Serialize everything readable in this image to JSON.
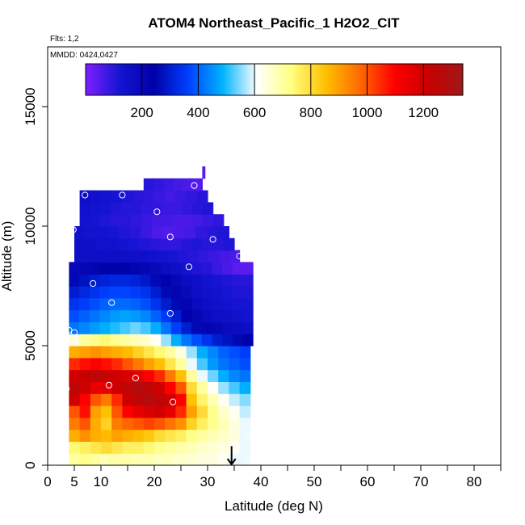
{
  "chart_data": {
    "type": "heatmap",
    "title": "ATOM4 Northeast_Pacific_1 H2O2_CIT",
    "flights_text": "Flts: 1,2",
    "dates_text": "MMDD: 0424,0427",
    "xlabel": "Latitude (deg N)",
    "ylabel": "Altitude (m)",
    "xlim": [
      0,
      85
    ],
    "ylim": [
      0,
      17500
    ],
    "x_ticks": [
      0,
      5,
      10,
      20,
      30,
      40,
      50,
      60,
      70,
      80
    ],
    "x_tick_labels": [
      "0",
      "5",
      "10",
      "20",
      "30",
      "40",
      "50",
      "60",
      "70",
      "80"
    ],
    "x_minor_ticks": [
      15,
      25,
      35,
      45,
      55,
      65,
      75,
      85
    ],
    "y_ticks": [
      0,
      5000,
      10000,
      15000
    ],
    "y_tick_labels": [
      "0",
      "5000",
      "10000",
      "15000"
    ],
    "colorbar": {
      "min": 0,
      "max": 1340,
      "ticks": [
        200,
        400,
        600,
        800,
        1000,
        1200
      ],
      "tick_labels": [
        "200",
        "400",
        "600",
        "800",
        "1000",
        "1200"
      ],
      "colors": [
        "#7f1fff",
        "#1414d2",
        "#0000a8",
        "#0040ff",
        "#00b4ff",
        "#ffffff",
        "#ffff80",
        "#ffc000",
        "#ff6a00",
        "#ff0000",
        "#c80000",
        "#a01818"
      ]
    },
    "layers": [
      {
        "alt": [
          0,
          500
        ],
        "lat": [
          4,
          38
        ],
        "values": [
          700,
          720,
          700,
          690,
          690,
          690,
          680,
          680,
          670,
          670,
          660,
          650,
          640,
          640,
          620,
          600,
          600
        ]
      },
      {
        "alt": [
          500,
          1000
        ],
        "lat": [
          4,
          38
        ],
        "values": [
          740,
          760,
          780,
          800,
          780,
          760,
          760,
          740,
          720,
          700,
          690,
          680,
          660,
          650,
          640,
          620,
          600
        ]
      },
      {
        "alt": [
          1000,
          1500
        ],
        "lat": [
          4,
          38
        ],
        "values": [
          880,
          920,
          880,
          860,
          900,
          880,
          860,
          840,
          800,
          780,
          760,
          720,
          700,
          680,
          660,
          640,
          600
        ]
      },
      {
        "alt": [
          1500,
          2000
        ],
        "lat": [
          4,
          38
        ],
        "values": [
          950,
          1000,
          880,
          820,
          950,
          980,
          1000,
          1020,
          1000,
          960,
          920,
          820,
          760,
          720,
          680,
          640,
          600
        ]
      },
      {
        "alt": [
          2000,
          2500
        ],
        "lat": [
          4,
          38
        ],
        "values": [
          1000,
          1080,
          900,
          850,
          1000,
          1100,
          1150,
          1180,
          1200,
          1150,
          1050,
          900,
          800,
          720,
          660,
          620,
          580
        ]
      },
      {
        "alt": [
          2500,
          3000
        ],
        "lat": [
          4,
          38
        ],
        "values": [
          1200,
          1100,
          1000,
          950,
          1050,
          1200,
          1250,
          1280,
          1250,
          1200,
          1100,
          850,
          750,
          680,
          620,
          580,
          550
        ]
      },
      {
        "alt": [
          3000,
          3500
        ],
        "lat": [
          4,
          38
        ],
        "values": [
          1250,
          1200,
          1150,
          1150,
          1200,
          1250,
          1280,
          1250,
          1200,
          1100,
          1000,
          800,
          700,
          620,
          560,
          520,
          480
        ]
      },
      {
        "alt": [
          3500,
          4000
        ],
        "lat": [
          4,
          38
        ],
        "values": [
          1200,
          1220,
          1250,
          1230,
          1200,
          1180,
          1150,
          1100,
          1050,
          950,
          850,
          700,
          600,
          540,
          480,
          440,
          420
        ]
      },
      {
        "alt": [
          4000,
          4500
        ],
        "lat": [
          4,
          38
        ],
        "values": [
          1050,
          1080,
          1100,
          1080,
          1050,
          1000,
          950,
          900,
          850,
          780,
          700,
          600,
          520,
          460,
          420,
          400,
          380
        ]
      },
      {
        "alt": [
          4500,
          5000
        ],
        "lat": [
          4,
          38
        ],
        "values": [
          880,
          900,
          920,
          900,
          880,
          860,
          820,
          780,
          740,
          700,
          640,
          560,
          480,
          440,
          400,
          380,
          360
        ]
      },
      {
        "alt": [
          5000,
          5500
        ],
        "lat": [
          4,
          38.5
        ],
        "values": [
          640,
          700,
          720,
          740,
          720,
          700,
          680,
          660,
          620,
          560,
          480,
          420,
          380,
          340,
          300,
          280,
          260,
          240
        ]
      },
      {
        "alt": [
          5500,
          6000
        ],
        "lat": [
          4,
          38.5
        ],
        "values": [
          420,
          440,
          460,
          480,
          500,
          520,
          540,
          520,
          480,
          420,
          360,
          300,
          260,
          220,
          200,
          180,
          170,
          160
        ]
      },
      {
        "alt": [
          6000,
          6500
        ],
        "lat": [
          4,
          38.5
        ],
        "values": [
          380,
          400,
          420,
          440,
          460,
          470,
          460,
          440,
          400,
          350,
          300,
          250,
          210,
          180,
          160,
          150,
          140,
          130
        ]
      },
      {
        "alt": [
          6500,
          7000
        ],
        "lat": [
          4,
          38.5
        ],
        "values": [
          340,
          360,
          380,
          400,
          410,
          410,
          400,
          380,
          340,
          300,
          260,
          220,
          180,
          160,
          140,
          130,
          120,
          120
        ]
      },
      {
        "alt": [
          7000,
          7500
        ],
        "lat": [
          4,
          38.5
        ],
        "values": [
          300,
          320,
          340,
          360,
          370,
          370,
          360,
          340,
          300,
          260,
          220,
          190,
          160,
          140,
          130,
          120,
          110,
          110
        ]
      },
      {
        "alt": [
          7500,
          8000
        ],
        "lat": [
          4,
          38.5
        ],
        "values": [
          260,
          280,
          300,
          310,
          320,
          320,
          310,
          290,
          260,
          230,
          200,
          170,
          150,
          130,
          120,
          110,
          100,
          100
        ]
      },
      {
        "alt": [
          8000,
          8500
        ],
        "lat": [
          4,
          38.5
        ],
        "values": [
          200,
          210,
          220,
          230,
          230,
          230,
          220,
          210,
          190,
          170,
          150,
          130,
          110,
          100,
          80,
          60,
          40,
          40
        ]
      },
      {
        "alt": [
          8500,
          9000
        ],
        "lat": [
          5,
          36
        ],
        "values": [
          150,
          150,
          160,
          160,
          160,
          150,
          150,
          140,
          130,
          120,
          110,
          100,
          90,
          80,
          70,
          60
        ]
      },
      {
        "alt": [
          9000,
          9500
        ],
        "lat": [
          5,
          35
        ],
        "values": [
          150,
          150,
          140,
          140,
          130,
          120,
          110,
          100,
          90,
          90,
          100,
          110,
          100,
          100,
          110
        ]
      },
      {
        "alt": [
          9500,
          10000
        ],
        "lat": [
          5,
          34
        ],
        "values": [
          140,
          130,
          130,
          120,
          110,
          100,
          80,
          60,
          50,
          60,
          70,
          90,
          100,
          110
        ]
      },
      {
        "alt": [
          10000,
          10500
        ],
        "lat": [
          6,
          33
        ],
        "values": [
          130,
          120,
          110,
          100,
          100,
          90,
          80,
          70,
          70,
          60,
          60,
          70,
          80,
          90
        ]
      },
      {
        "alt": [
          10500,
          11000
        ],
        "lat": [
          6,
          31
        ],
        "values": [
          140,
          130,
          120,
          110,
          100,
          100,
          90,
          90,
          80,
          80,
          90,
          100,
          110
        ]
      },
      {
        "alt": [
          11000,
          11500
        ],
        "lat": [
          6,
          30
        ],
        "values": [
          150,
          140,
          130,
          120,
          110,
          100,
          90,
          80,
          70,
          80,
          90,
          100
        ]
      },
      {
        "alt": [
          11500,
          12000
        ],
        "lat": [
          18,
          29
        ],
        "values": [
          100,
          90,
          80,
          70,
          60,
          50
        ]
      },
      {
        "alt": [
          12000,
          12500
        ],
        "lat": [
          29,
          29.5
        ],
        "values": [
          40
        ]
      }
    ],
    "sample_points": [
      {
        "lat": 7,
        "alt": 11300
      },
      {
        "lat": 14,
        "alt": 11300
      },
      {
        "lat": 27.5,
        "alt": 11700
      },
      {
        "lat": 20.5,
        "alt": 10600
      },
      {
        "lat": 4.8,
        "alt": 9850
      },
      {
        "lat": 23,
        "alt": 9550
      },
      {
        "lat": 31,
        "alt": 9450
      },
      {
        "lat": 36,
        "alt": 8750
      },
      {
        "lat": 26.5,
        "alt": 8300
      },
      {
        "lat": 8.5,
        "alt": 7600
      },
      {
        "lat": 12,
        "alt": 6800
      },
      {
        "lat": 23,
        "alt": 6350
      },
      {
        "lat": 4,
        "alt": 5650
      },
      {
        "lat": 5,
        "alt": 5550
      },
      {
        "lat": 16.5,
        "alt": 3650
      },
      {
        "lat": 11.5,
        "alt": 3350
      },
      {
        "lat": 3.5,
        "alt": 3200
      },
      {
        "lat": 23.5,
        "alt": 2650
      },
      {
        "lat": 37.5,
        "alt": 1200
      },
      {
        "lat": 3.5,
        "alt": 180
      },
      {
        "lat": 10.5,
        "alt": 150
      },
      {
        "lat": 24,
        "alt": 150
      },
      {
        "lat": 37.5,
        "alt": 150
      }
    ],
    "marker_arrow": {
      "lat": 34.5,
      "alt_from": 800,
      "alt_to": 0
    },
    "grid": false
  }
}
